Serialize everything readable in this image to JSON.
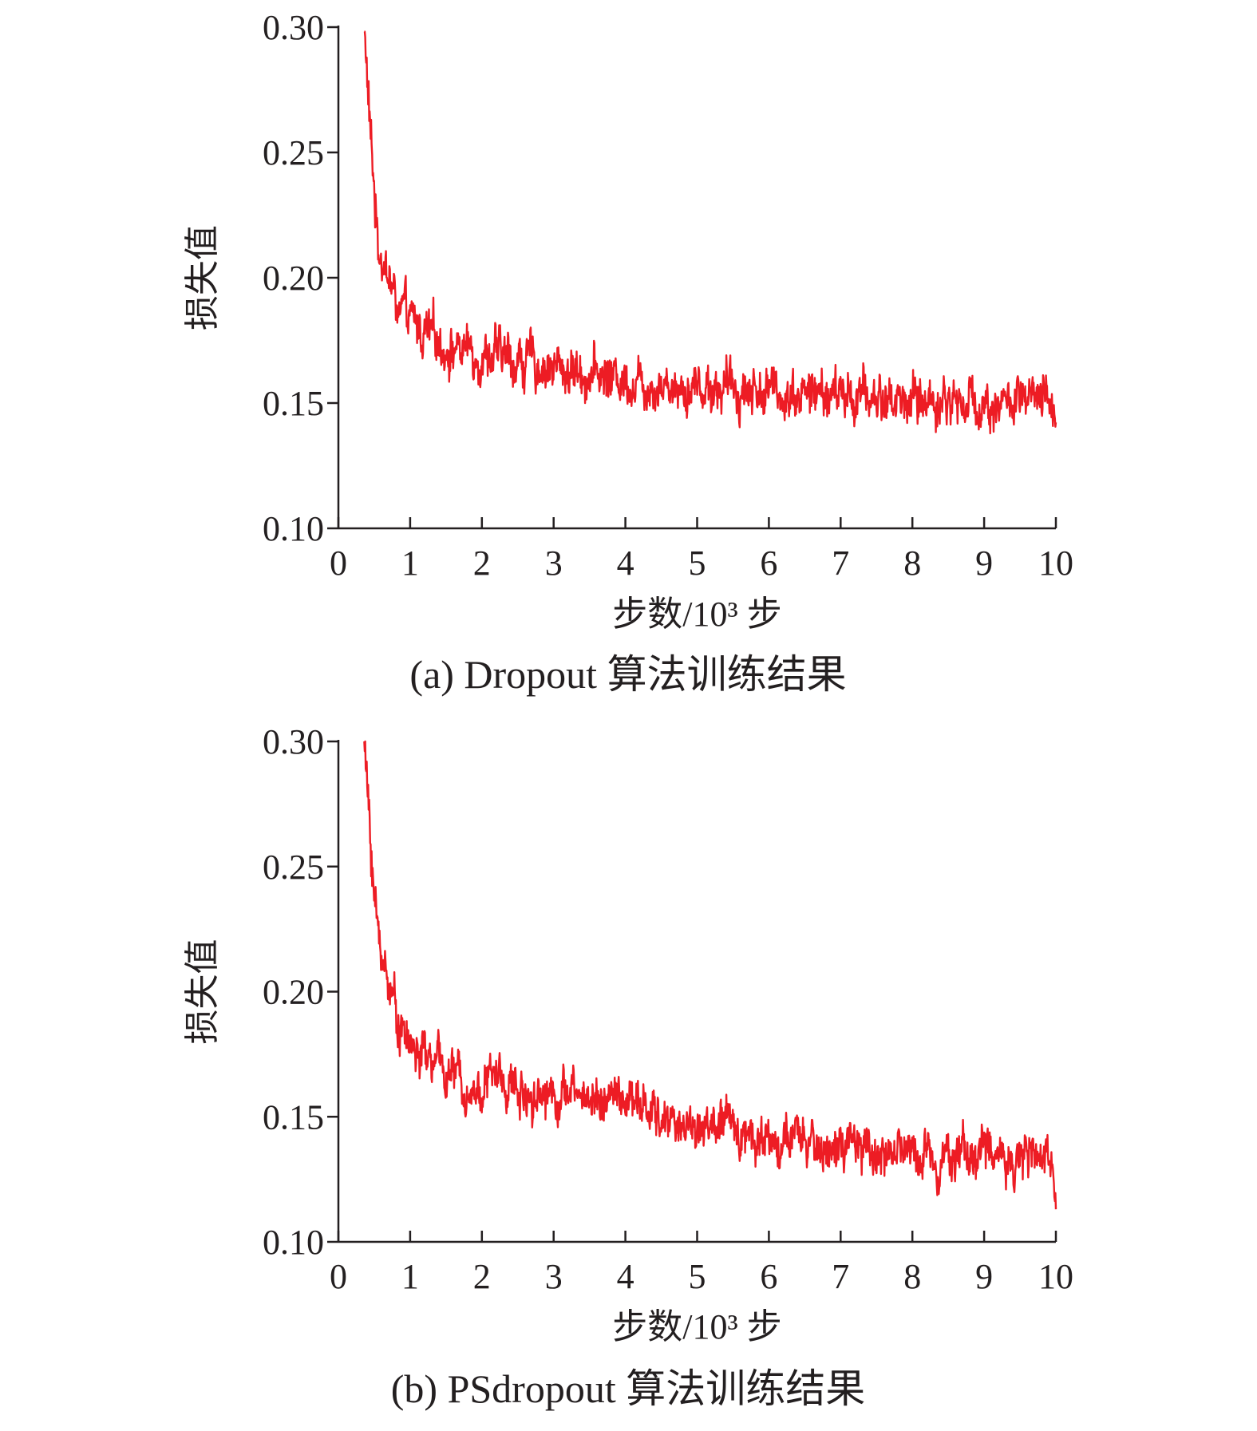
{
  "chart_data": [
    {
      "type": "line",
      "caption": "(a) Dropout 算法训练结果",
      "xlabel": "步数/10³ 步",
      "ylabel": "损失值",
      "xlim": [
        0,
        10
      ],
      "ylim": [
        0.1,
        0.3
      ],
      "xticks": [
        0,
        1,
        2,
        3,
        4,
        5,
        6,
        7,
        8,
        9,
        10
      ],
      "xtick_labels": [
        "0",
        "1",
        "2",
        "3",
        "4",
        "5",
        "6",
        "7",
        "8",
        "9",
        "10"
      ],
      "yticks": [
        0.1,
        0.15,
        0.2,
        0.25,
        0.3
      ],
      "ytick_labels": [
        "0.10",
        "0.15",
        "0.20",
        "0.25",
        "0.30"
      ],
      "grid": false,
      "series": [
        {
          "color": "#ed1c24",
          "x": [
            0.36,
            0.45,
            0.55,
            0.7,
            0.85,
            1.0,
            1.3,
            1.6,
            2.0,
            2.5,
            3.0,
            3.5,
            4.0,
            4.5,
            5.0,
            5.5,
            6.0,
            6.5,
            7.0,
            7.5,
            8.0,
            8.5,
            9.0,
            9.5,
            10.0
          ],
          "y": [
            0.3,
            0.255,
            0.215,
            0.2,
            0.186,
            0.182,
            0.176,
            0.172,
            0.17,
            0.167,
            0.164,
            0.162,
            0.16,
            0.158,
            0.157,
            0.156,
            0.155,
            0.154,
            0.153,
            0.152,
            0.151,
            0.151,
            0.15,
            0.15,
            0.149
          ],
          "noise": 0.0075
        }
      ]
    },
    {
      "type": "line",
      "caption": "(b) PSdropout 算法训练结果",
      "xlabel": "步数/10³ 步",
      "ylabel": "损失值",
      "xlim": [
        0,
        10
      ],
      "ylim": [
        0.1,
        0.3
      ],
      "xticks": [
        0,
        1,
        2,
        3,
        4,
        5,
        6,
        7,
        8,
        9,
        10
      ],
      "xtick_labels": [
        "0",
        "1",
        "2",
        "3",
        "4",
        "5",
        "6",
        "7",
        "8",
        "9",
        "10"
      ],
      "yticks": [
        0.1,
        0.15,
        0.2,
        0.25,
        0.3
      ],
      "ytick_labels": [
        "0.10",
        "0.15",
        "0.20",
        "0.25",
        "0.30"
      ],
      "grid": false,
      "series": [
        {
          "color": "#ed1c24",
          "x": [
            0.36,
            0.45,
            0.55,
            0.7,
            0.85,
            1.0,
            1.3,
            1.6,
            1.9,
            2.2,
            2.5,
            3.0,
            3.5,
            4.0,
            4.5,
            5.0,
            5.5,
            6.0,
            6.5,
            7.0,
            7.5,
            8.0,
            8.5,
            9.0,
            9.5,
            10.0
          ],
          "y": [
            0.3,
            0.26,
            0.222,
            0.205,
            0.188,
            0.178,
            0.172,
            0.167,
            0.16,
            0.167,
            0.16,
            0.16,
            0.158,
            0.157,
            0.149,
            0.146,
            0.146,
            0.141,
            0.139,
            0.137,
            0.136,
            0.136,
            0.135,
            0.136,
            0.134,
            0.13
          ],
          "noise": 0.0072
        }
      ]
    }
  ]
}
